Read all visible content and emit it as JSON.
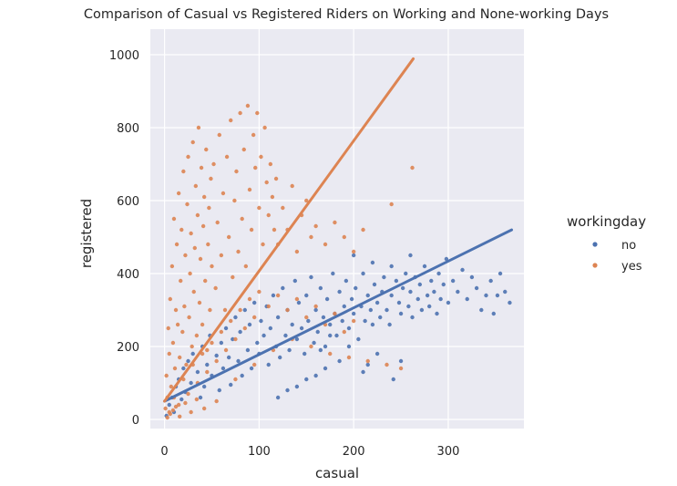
{
  "chart_data": {
    "type": "scatter",
    "title": "Comparison of Casual vs Registered Riders on Working and None-working Days",
    "xlabel": "casual",
    "ylabel": "registered",
    "xlim": [
      -15,
      380
    ],
    "ylim": [
      -25,
      1070
    ],
    "x_ticks": [
      0,
      100,
      200,
      300
    ],
    "y_ticks": [
      0,
      200,
      400,
      600,
      800,
      1000
    ],
    "grid": true,
    "legend": {
      "title": "workingday",
      "placement": "right",
      "entries": [
        "no",
        "yes"
      ]
    },
    "series": [
      {
        "name": "no",
        "color": "#4c72b0",
        "regression": {
          "slope": 1.28,
          "intercept": 50,
          "x_range": [
            0,
            367
          ]
        },
        "points": [
          [
            2,
            10
          ],
          [
            5,
            40
          ],
          [
            8,
            60
          ],
          [
            10,
            20
          ],
          [
            12,
            90
          ],
          [
            15,
            110
          ],
          [
            18,
            55
          ],
          [
            20,
            140
          ],
          [
            22,
            75
          ],
          [
            25,
            160
          ],
          [
            28,
            100
          ],
          [
            30,
            180
          ],
          [
            35,
            130
          ],
          [
            38,
            60
          ],
          [
            40,
            200
          ],
          [
            42,
            90
          ],
          [
            45,
            150
          ],
          [
            48,
            230
          ],
          [
            50,
            120
          ],
          [
            55,
            175
          ],
          [
            58,
            80
          ],
          [
            60,
            210
          ],
          [
            62,
            140
          ],
          [
            65,
            250
          ],
          [
            68,
            170
          ],
          [
            70,
            95
          ],
          [
            72,
            220
          ],
          [
            75,
            280
          ],
          [
            78,
            160
          ],
          [
            80,
            240
          ],
          [
            82,
            120
          ],
          [
            85,
            300
          ],
          [
            88,
            190
          ],
          [
            90,
            260
          ],
          [
            92,
            140
          ],
          [
            95,
            320
          ],
          [
            98,
            210
          ],
          [
            100,
            180
          ],
          [
            102,
            270
          ],
          [
            105,
            230
          ],
          [
            108,
            310
          ],
          [
            110,
            150
          ],
          [
            112,
            250
          ],
          [
            115,
            340
          ],
          [
            118,
            200
          ],
          [
            120,
            280
          ],
          [
            122,
            170
          ],
          [
            125,
            360
          ],
          [
            128,
            230
          ],
          [
            130,
            300
          ],
          [
            132,
            190
          ],
          [
            135,
            260
          ],
          [
            138,
            380
          ],
          [
            140,
            220
          ],
          [
            142,
            320
          ],
          [
            145,
            250
          ],
          [
            148,
            180
          ],
          [
            150,
            340
          ],
          [
            152,
            270
          ],
          [
            155,
            390
          ],
          [
            158,
            210
          ],
          [
            160,
            300
          ],
          [
            162,
            240
          ],
          [
            165,
            360
          ],
          [
            168,
            280
          ],
          [
            170,
            200
          ],
          [
            172,
            330
          ],
          [
            175,
            260
          ],
          [
            178,
            400
          ],
          [
            180,
            290
          ],
          [
            182,
            230
          ],
          [
            185,
            350
          ],
          [
            188,
            270
          ],
          [
            190,
            310
          ],
          [
            192,
            380
          ],
          [
            195,
            250
          ],
          [
            198,
            330
          ],
          [
            200,
            290
          ],
          [
            202,
            360
          ],
          [
            205,
            220
          ],
          [
            208,
            310
          ],
          [
            210,
            400
          ],
          [
            212,
            270
          ],
          [
            215,
            340
          ],
          [
            218,
            300
          ],
          [
            220,
            260
          ],
          [
            222,
            370
          ],
          [
            225,
            320
          ],
          [
            228,
            280
          ],
          [
            230,
            350
          ],
          [
            232,
            390
          ],
          [
            235,
            300
          ],
          [
            238,
            260
          ],
          [
            240,
            340
          ],
          [
            242,
            110
          ],
          [
            245,
            380
          ],
          [
            248,
            320
          ],
          [
            250,
            290
          ],
          [
            252,
            360
          ],
          [
            255,
            400
          ],
          [
            258,
            310
          ],
          [
            260,
            350
          ],
          [
            262,
            280
          ],
          [
            265,
            390
          ],
          [
            268,
            330
          ],
          [
            270,
            370
          ],
          [
            272,
            300
          ],
          [
            275,
            420
          ],
          [
            278,
            340
          ],
          [
            280,
            310
          ],
          [
            282,
            380
          ],
          [
            285,
            350
          ],
          [
            288,
            290
          ],
          [
            290,
            400
          ],
          [
            292,
            330
          ],
          [
            295,
            370
          ],
          [
            298,
            440
          ],
          [
            300,
            320
          ],
          [
            305,
            380
          ],
          [
            310,
            350
          ],
          [
            315,
            410
          ],
          [
            320,
            330
          ],
          [
            325,
            390
          ],
          [
            330,
            360
          ],
          [
            335,
            300
          ],
          [
            340,
            340
          ],
          [
            345,
            380
          ],
          [
            348,
            290
          ],
          [
            352,
            340
          ],
          [
            355,
            400
          ],
          [
            360,
            350
          ],
          [
            365,
            320
          ],
          [
            210,
            130
          ],
          [
            185,
            160
          ],
          [
            170,
            140
          ],
          [
            160,
            120
          ],
          [
            150,
            110
          ],
          [
            140,
            90
          ],
          [
            130,
            80
          ],
          [
            120,
            60
          ],
          [
            240,
            420
          ],
          [
            220,
            430
          ],
          [
            200,
            450
          ],
          [
            260,
            450
          ],
          [
            250,
            160
          ],
          [
            225,
            180
          ],
          [
            215,
            150
          ],
          [
            195,
            200
          ],
          [
            175,
            230
          ],
          [
            165,
            190
          ]
        ]
      },
      {
        "name": "yes",
        "color": "#dd8452",
        "regression": {
          "slope": 3.57,
          "intercept": 50,
          "x_range": [
            0,
            263
          ]
        },
        "points": [
          [
            1,
            30
          ],
          [
            2,
            120
          ],
          [
            3,
            60
          ],
          [
            4,
            250
          ],
          [
            5,
            180
          ],
          [
            6,
            330
          ],
          [
            7,
            90
          ],
          [
            8,
            420
          ],
          [
            9,
            210
          ],
          [
            10,
            550
          ],
          [
            11,
            140
          ],
          [
            12,
            300
          ],
          [
            13,
            480
          ],
          [
            14,
            260
          ],
          [
            15,
            620
          ],
          [
            16,
            170
          ],
          [
            17,
            380
          ],
          [
            18,
            520
          ],
          [
            19,
            240
          ],
          [
            20,
            680
          ],
          [
            21,
            310
          ],
          [
            22,
            450
          ],
          [
            23,
            150
          ],
          [
            24,
            590
          ],
          [
            25,
            720
          ],
          [
            26,
            280
          ],
          [
            27,
            400
          ],
          [
            28,
            510
          ],
          [
            29,
            200
          ],
          [
            30,
            760
          ],
          [
            31,
            350
          ],
          [
            32,
            470
          ],
          [
            33,
            640
          ],
          [
            34,
            230
          ],
          [
            35,
            560
          ],
          [
            36,
            800
          ],
          [
            37,
            320
          ],
          [
            38,
            440
          ],
          [
            39,
            690
          ],
          [
            40,
            260
          ],
          [
            41,
            530
          ],
          [
            42,
            610
          ],
          [
            43,
            380
          ],
          [
            44,
            740
          ],
          [
            45,
            190
          ],
          [
            46,
            480
          ],
          [
            47,
            580
          ],
          [
            48,
            300
          ],
          [
            49,
            660
          ],
          [
            50,
            420
          ],
          [
            52,
            700
          ],
          [
            54,
            360
          ],
          [
            56,
            540
          ],
          [
            58,
            780
          ],
          [
            60,
            450
          ],
          [
            62,
            620
          ],
          [
            64,
            300
          ],
          [
            66,
            720
          ],
          [
            68,
            500
          ],
          [
            70,
            820
          ],
          [
            72,
            390
          ],
          [
            74,
            600
          ],
          [
            76,
            680
          ],
          [
            78,
            460
          ],
          [
            80,
            840
          ],
          [
            82,
            550
          ],
          [
            84,
            740
          ],
          [
            86,
            420
          ],
          [
            88,
            860
          ],
          [
            90,
            630
          ],
          [
            92,
            520
          ],
          [
            94,
            780
          ],
          [
            96,
            690
          ],
          [
            98,
            840
          ],
          [
            100,
            580
          ],
          [
            102,
            720
          ],
          [
            104,
            480
          ],
          [
            106,
            800
          ],
          [
            108,
            650
          ],
          [
            110,
            560
          ],
          [
            112,
            700
          ],
          [
            114,
            610
          ],
          [
            116,
            520
          ],
          [
            118,
            660
          ],
          [
            120,
            480
          ],
          [
            125,
            580
          ],
          [
            130,
            520
          ],
          [
            135,
            640
          ],
          [
            140,
            460
          ],
          [
            145,
            560
          ],
          [
            150,
            600
          ],
          [
            155,
            500
          ],
          [
            160,
            530
          ],
          [
            170,
            480
          ],
          [
            180,
            540
          ],
          [
            190,
            500
          ],
          [
            200,
            460
          ],
          [
            210,
            520
          ],
          [
            240,
            590
          ],
          [
            262,
            690
          ],
          [
            5,
            20
          ],
          [
            10,
            60
          ],
          [
            15,
            40
          ],
          [
            20,
            110
          ],
          [
            25,
            70
          ],
          [
            30,
            150
          ],
          [
            35,
            100
          ],
          [
            40,
            180
          ],
          [
            45,
            130
          ],
          [
            50,
            210
          ],
          [
            55,
            160
          ],
          [
            60,
            240
          ],
          [
            65,
            190
          ],
          [
            70,
            270
          ],
          [
            75,
            220
          ],
          [
            80,
            300
          ],
          [
            85,
            250
          ],
          [
            90,
            330
          ],
          [
            95,
            280
          ],
          [
            100,
            350
          ],
          [
            110,
            310
          ],
          [
            120,
            340
          ],
          [
            130,
            300
          ],
          [
            140,
            330
          ],
          [
            150,
            280
          ],
          [
            160,
            310
          ],
          [
            170,
            260
          ],
          [
            180,
            290
          ],
          [
            190,
            240
          ],
          [
            200,
            270
          ],
          [
            3,
            5
          ],
          [
            6,
            15
          ],
          [
            9,
            25
          ],
          [
            12,
            35
          ],
          [
            16,
            8
          ],
          [
            22,
            45
          ],
          [
            28,
            20
          ],
          [
            34,
            55
          ],
          [
            42,
            30
          ],
          [
            55,
            50
          ],
          [
            75,
            110
          ],
          [
            95,
            150
          ],
          [
            115,
            190
          ],
          [
            135,
            220
          ],
          [
            155,
            200
          ],
          [
            175,
            180
          ],
          [
            195,
            170
          ],
          [
            215,
            160
          ],
          [
            235,
            150
          ],
          [
            250,
            140
          ]
        ]
      }
    ]
  }
}
